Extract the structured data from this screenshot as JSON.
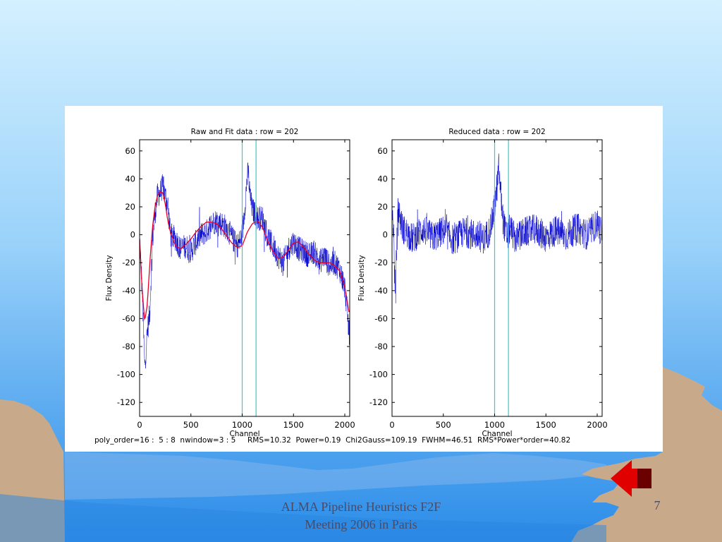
{
  "slide": {
    "footer_line1": "ALMA Pipeline Heuristics F2F",
    "footer_line2": "Meeting 2006 in Paris",
    "page_number": "7",
    "stats": "poly_order=16 :  5 : 8  nwindow=3 : 5     RMS=10.32  Power=0.19  Chi2Gauss=109.19  FWHM=46.51  RMS*Power*order=40.82"
  },
  "colors": {
    "sky_top": "#cfeeff",
    "sky_bottom": "#2f8fe8",
    "land": "#c8aa8a",
    "raw_line": "#0000cc",
    "fit_line": "#e8002a",
    "window_line": "#33cccc"
  },
  "icons": {
    "back": "back-arrow-icon",
    "pagoda": "pagoda-silhouette"
  },
  "chart_data": [
    {
      "type": "line",
      "title": "Raw and Fit data : row = 202",
      "xlabel": "Channel",
      "ylabel": "Flux Density",
      "xlim": [
        0,
        2048
      ],
      "ylim": [
        -130,
        68
      ],
      "xticks": [
        0,
        500,
        1000,
        1500,
        2000
      ],
      "yticks": [
        60,
        40,
        20,
        0,
        -20,
        -40,
        -60,
        -80,
        -100,
        -120
      ],
      "vlines": [
        1000,
        1135
      ],
      "grid": false,
      "series": [
        {
          "values_kind": "raw",
          "x": [
            0,
            25,
            50,
            75,
            100,
            125,
            150,
            175,
            200,
            225,
            250,
            275,
            300,
            350,
            400,
            450,
            500,
            550,
            600,
            650,
            700,
            750,
            800,
            850,
            900,
            950,
            975,
            1000,
            1025,
            1050,
            1060,
            1075,
            1100,
            1125,
            1150,
            1200,
            1250,
            1300,
            1350,
            1400,
            1450,
            1500,
            1550,
            1600,
            1650,
            1700,
            1750,
            1800,
            1850,
            1900,
            1950,
            2000,
            2025,
            2040
          ],
          "y": [
            -2,
            -40,
            -95,
            -70,
            -55,
            -5,
            15,
            28,
            30,
            35,
            28,
            22,
            0,
            -3,
            -10,
            -8,
            -12,
            -5,
            0,
            2,
            8,
            10,
            8,
            5,
            -2,
            -8,
            -5,
            0,
            20,
            42,
            45,
            28,
            18,
            15,
            12,
            12,
            -2,
            -8,
            -15,
            -20,
            -10,
            -5,
            -10,
            -12,
            -15,
            -12,
            -20,
            -15,
            -22,
            -20,
            -25,
            -38,
            -55,
            -70
          ]
        },
        {
          "values_kind": "fit",
          "x": [
            0,
            25,
            50,
            75,
            100,
            125,
            150,
            175,
            200,
            225,
            250,
            275,
            300,
            350,
            400,
            450,
            500,
            550,
            600,
            650,
            700,
            750,
            800,
            850,
            900,
            950,
            1000,
            1050,
            1100,
            1150,
            1200,
            1250,
            1300,
            1350,
            1400,
            1450,
            1500,
            1550,
            1600,
            1650,
            1700,
            1750,
            1800,
            1850,
            1900,
            1950,
            2000,
            2040
          ],
          "y": [
            -3,
            -40,
            -62,
            -50,
            -20,
            5,
            20,
            28,
            31,
            30,
            22,
            10,
            2,
            -8,
            -10,
            -7,
            -3,
            2,
            6,
            9,
            9,
            8,
            4,
            -1,
            -6,
            -9,
            -8,
            2,
            8,
            10,
            5,
            -5,
            -12,
            -17,
            -16,
            -11,
            -6,
            -5,
            -9,
            -14,
            -18,
            -20,
            -20,
            -20,
            -22,
            -26,
            -37,
            -55
          ]
        }
      ]
    },
    {
      "type": "line",
      "title": "Reduced data : row = 202",
      "xlabel": "Channel",
      "ylabel": "Flux Density",
      "xlim": [
        0,
        2048
      ],
      "ylim": [
        -130,
        68
      ],
      "xticks": [
        0,
        500,
        1000,
        1500,
        2000
      ],
      "yticks": [
        60,
        40,
        20,
        0,
        -20,
        -40,
        -60,
        -80,
        -100,
        -120
      ],
      "vlines": [
        1000,
        1135
      ],
      "grid": false,
      "series": [
        {
          "values_kind": "residual",
          "x": [
            0,
            15,
            30,
            45,
            60,
            100,
            200,
            300,
            400,
            500,
            600,
            700,
            800,
            900,
            950,
            975,
            1000,
            1025,
            1040,
            1060,
            1080,
            1100,
            1125,
            1150,
            1200,
            1300,
            1400,
            1500,
            1600,
            1700,
            1800,
            1900,
            2000,
            2040
          ],
          "y": [
            15,
            5,
            -45,
            -10,
            20,
            5,
            -3,
            4,
            -2,
            3,
            -4,
            2,
            0,
            -3,
            3,
            10,
            20,
            35,
            48,
            30,
            12,
            4,
            -2,
            5,
            -3,
            2,
            4,
            -2,
            3,
            -1,
            5,
            0,
            8,
            2
          ]
        }
      ]
    }
  ]
}
